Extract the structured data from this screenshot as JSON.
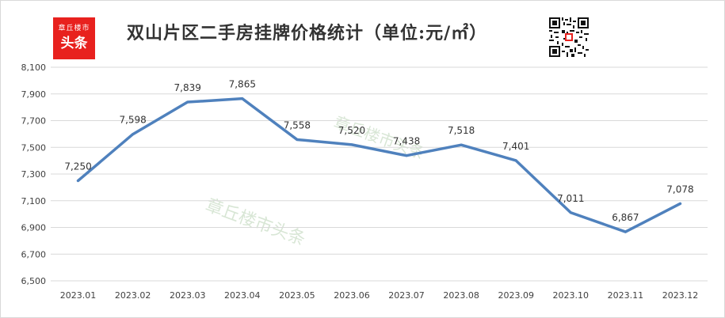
{
  "logo": {
    "line1": "章丘楼市",
    "line2": "头条"
  },
  "watermark": "章丘楼市头条",
  "colors": {
    "line": "#4f81bd",
    "logo_bg": "#e8211e",
    "grid": "#d9d9d9",
    "text": "#404040"
  },
  "chart_data": {
    "type": "line",
    "title": "双山片区二手房挂牌价格统计（单位:元/㎡）",
    "xlabel": "",
    "ylabel": "",
    "categories": [
      "2023.01",
      "2023.02",
      "2023.03",
      "2023.04",
      "2023.05",
      "2023.06",
      "2023.07",
      "2023.08",
      "2023.09",
      "2023.10",
      "2023.11",
      "2023.12"
    ],
    "series": [
      {
        "values": [
          7250,
          7598,
          7839,
          7865,
          7558,
          7520,
          7438,
          7518,
          7401,
          7011,
          6867,
          7078
        ]
      }
    ],
    "data_labels": [
      "7,250",
      "7,598",
      "7,839",
      "7,865",
      "7,558",
      "7,520",
      "7,438",
      "7,518",
      "7,401",
      "7,011",
      "6,867",
      "7,078"
    ],
    "ylim": [
      6500,
      8100
    ],
    "yticks": [
      6500,
      6700,
      6900,
      7100,
      7300,
      7500,
      7700,
      7900,
      8100
    ],
    "ytick_labels": [
      "6,500",
      "6,700",
      "6,900",
      "7,100",
      "7,300",
      "7,500",
      "7,700",
      "7,900",
      "8,100"
    ],
    "grid": true,
    "legend": "none"
  }
}
